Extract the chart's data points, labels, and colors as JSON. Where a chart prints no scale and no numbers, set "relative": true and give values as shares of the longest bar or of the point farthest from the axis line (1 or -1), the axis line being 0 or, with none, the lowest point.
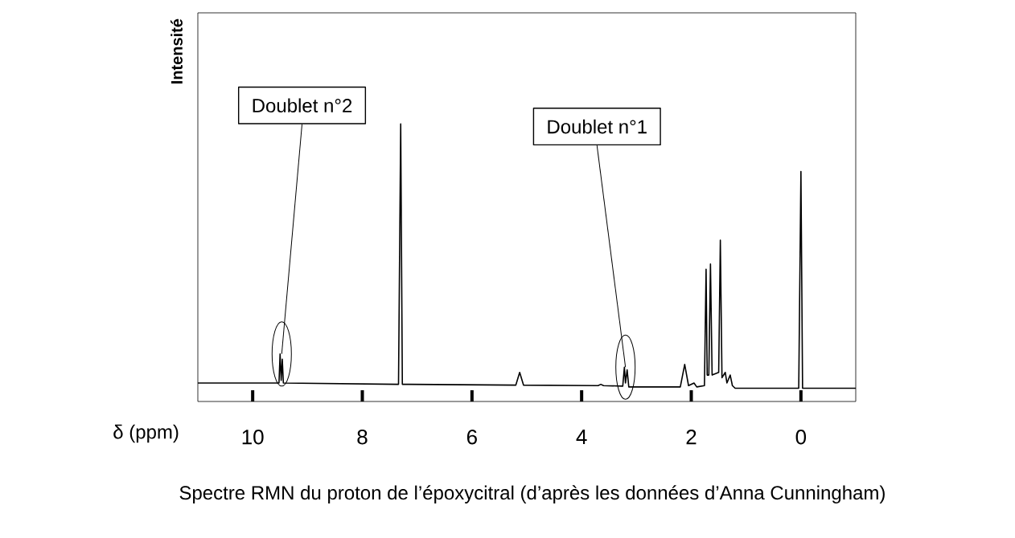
{
  "chart_data": {
    "type": "line",
    "relative": true,
    "color": "#000000",
    "xlabel": "δ (ppm)",
    "ylabel": "Intensité",
    "xlim": [
      11,
      -1
    ],
    "xticks": [
      10,
      8,
      6,
      4,
      2,
      0
    ],
    "x": [
      11.0,
      9.6,
      9.52,
      9.5,
      9.48,
      9.46,
      9.44,
      7.34,
      7.3,
      7.27,
      5.2,
      5.13,
      5.06,
      3.7,
      3.65,
      3.6,
      3.25,
      3.22,
      3.2,
      3.17,
      3.14,
      2.2,
      2.12,
      2.05,
      1.95,
      1.9,
      1.76,
      1.73,
      1.71,
      1.68,
      1.65,
      1.62,
      1.5,
      1.47,
      1.44,
      1.38,
      1.35,
      1.29,
      1.25,
      1.2,
      0.04,
      0.0,
      -0.03,
      -1.0
    ],
    "values": [
      0.02,
      0.02,
      0.02,
      0.13,
      0.03,
      0.11,
      0.02,
      0.015,
      1.0,
      0.015,
      0.012,
      0.06,
      0.012,
      0.01,
      0.015,
      0.01,
      0.008,
      0.08,
      0.02,
      0.07,
      0.005,
      0.005,
      0.09,
      0.01,
      0.02,
      0.005,
      0.01,
      0.45,
      0.05,
      0.05,
      0.47,
      0.05,
      0.06,
      0.56,
      0.04,
      0.06,
      0.02,
      0.05,
      0.01,
      0.0,
      0.0,
      0.82,
      0.0,
      0.0
    ],
    "annotations": [
      {
        "text": "Doublet n°2",
        "x": 9.47,
        "y": 0.13
      },
      {
        "text": "Doublet n°1",
        "x": 3.2,
        "y": 0.08
      },
      "Spectre RMN du proton de l’époxycitral (d’après les données d’Anna Cunningham)"
    ]
  }
}
